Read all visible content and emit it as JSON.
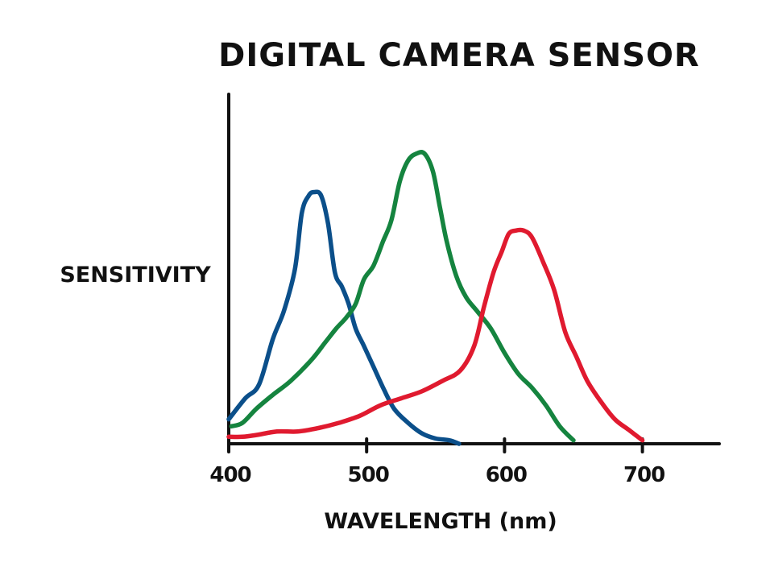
{
  "chart_data": {
    "type": "line",
    "title": "DIGITAL CAMERA SENSOR",
    "xlabel": "WAVELENGTH (nm)",
    "ylabel": "SENSITIVITY",
    "xlim": [
      400,
      756
    ],
    "ylim": [
      0,
      1
    ],
    "x_ticks": [
      400,
      500,
      600,
      700
    ],
    "y_ticks": [],
    "grid": false,
    "legend": "none",
    "series": [
      {
        "color": "#0b4f8a",
        "x": [
          400,
          412,
          422,
          432,
          440,
          448,
          453,
          458,
          462,
          467,
          472,
          477,
          482,
          487,
          492,
          498,
          505,
          512,
          520,
          530,
          540,
          550,
          560,
          567
        ],
        "y": [
          0.07,
          0.13,
          0.17,
          0.3,
          0.38,
          0.5,
          0.66,
          0.71,
          0.72,
          0.71,
          0.63,
          0.49,
          0.45,
          0.4,
          0.33,
          0.28,
          0.22,
          0.16,
          0.1,
          0.06,
          0.03,
          0.015,
          0.01,
          0.0
        ]
      },
      {
        "color": "#15843f",
        "x": [
          402,
          410,
          420,
          432,
          445,
          460,
          470,
          478,
          485,
          492,
          498,
          505,
          512,
          518,
          524,
          530,
          536,
          542,
          548,
          553,
          558,
          565,
          572,
          580,
          590,
          600,
          610,
          620,
          630,
          640,
          650
        ],
        "y": [
          0.05,
          0.06,
          0.1,
          0.14,
          0.18,
          0.24,
          0.29,
          0.33,
          0.36,
          0.4,
          0.47,
          0.51,
          0.58,
          0.64,
          0.75,
          0.81,
          0.83,
          0.83,
          0.78,
          0.68,
          0.58,
          0.48,
          0.42,
          0.38,
          0.33,
          0.26,
          0.2,
          0.16,
          0.11,
          0.05,
          0.01
        ]
      },
      {
        "color": "#e01a2f",
        "x": [
          400,
          410,
          420,
          435,
          450,
          465,
          480,
          495,
          510,
          525,
          540,
          555,
          568,
          578,
          585,
          592,
          598,
          603,
          608,
          614,
          620,
          628,
          636,
          644,
          652,
          660,
          670,
          680,
          690,
          700
        ],
        "y": [
          0.02,
          0.02,
          0.025,
          0.035,
          0.035,
          0.045,
          0.06,
          0.08,
          0.11,
          0.13,
          0.15,
          0.18,
          0.21,
          0.28,
          0.39,
          0.49,
          0.55,
          0.6,
          0.61,
          0.61,
          0.59,
          0.52,
          0.44,
          0.32,
          0.25,
          0.18,
          0.12,
          0.07,
          0.04,
          0.01
        ]
      }
    ]
  }
}
